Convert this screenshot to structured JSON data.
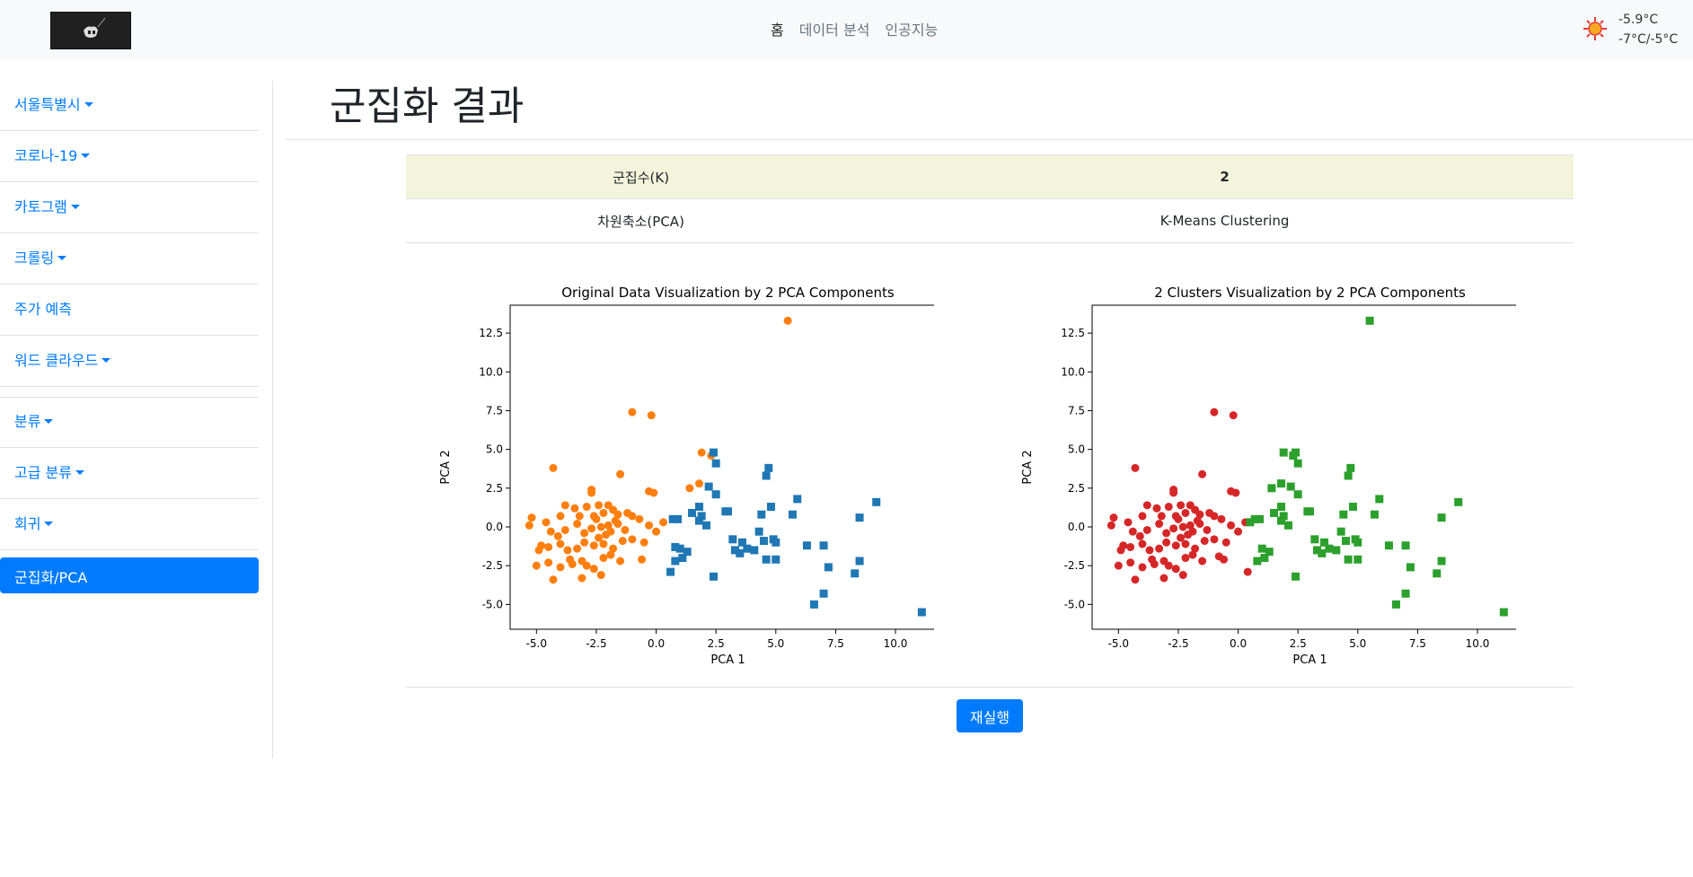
{
  "navbar": {
    "links": [
      {
        "label": "홈",
        "active": true
      },
      {
        "label": "데이터 분석",
        "active": false
      },
      {
        "label": "인공지능",
        "active": false
      }
    ],
    "weather": {
      "icon": "sun-icon",
      "current_temp": "-5.9°C",
      "range": "-7°C/-5°C"
    }
  },
  "sidebar": {
    "items": [
      {
        "label": "서울특별시",
        "dropdown": true
      },
      {
        "label": "코로나-19",
        "dropdown": true
      },
      {
        "label": "카토그램",
        "dropdown": true
      },
      {
        "label": "크롤링",
        "dropdown": true
      },
      {
        "label": "주가 예측",
        "dropdown": false
      },
      {
        "label": "워드 클라우드",
        "dropdown": true
      },
      {
        "label": "분류",
        "dropdown": true
      },
      {
        "label": "고급 분류",
        "dropdown": true
      },
      {
        "label": "회귀",
        "dropdown": true
      },
      {
        "label": "군집화/PCA",
        "dropdown": false,
        "active": true
      }
    ]
  },
  "main": {
    "title": "군집화 결과",
    "table": {
      "row1": {
        "label": "군집수(K)",
        "value": "2"
      },
      "row2": {
        "left": "차원축소(PCA)",
        "right": "K-Means Clustering"
      }
    },
    "rerun_label": "재실행"
  },
  "colors": {
    "orange": "#ff7f0e",
    "blue": "#1f77b4",
    "red": "#d62728",
    "green": "#2ca02c",
    "primary": "#007bff"
  },
  "chart_data": [
    {
      "type": "scatter",
      "title": "Original Data Visualization by 2 PCA Components",
      "xlabel": "PCA 1",
      "ylabel": "PCA 2",
      "xlim": [
        -6.1,
        12.1
      ],
      "ylim": [
        -6.6,
        14.3
      ],
      "xticks": [
        "-5.0",
        "-2.5",
        "0.0",
        "2.5",
        "5.0",
        "7.5",
        "10.0"
      ],
      "yticks": [
        "-5.0",
        "-2.5",
        "0.0",
        "2.5",
        "5.0",
        "7.5",
        "10.0",
        "12.5"
      ],
      "series": [
        {
          "marker": "circle",
          "color": "#ff7f0e",
          "points": [
            [
              5.5,
              13.3
            ],
            [
              -1.0,
              7.4
            ],
            [
              -0.2,
              7.2
            ],
            [
              1.9,
              4.8
            ],
            [
              2.3,
              4.6
            ],
            [
              -4.3,
              3.8
            ],
            [
              -1.5,
              3.4
            ],
            [
              1.8,
              2.8
            ],
            [
              -2.7,
              2.2
            ],
            [
              -0.3,
              2.3
            ],
            [
              -0.1,
              2.2
            ],
            [
              1.4,
              2.5
            ],
            [
              -2.7,
              2.4
            ],
            [
              -3.8,
              1.4
            ],
            [
              -3.4,
              1.2
            ],
            [
              -2.9,
              1.3
            ],
            [
              -2.4,
              1.4
            ],
            [
              -2.0,
              1.4
            ],
            [
              -1.8,
              1.1
            ],
            [
              -2.2,
              0.9
            ],
            [
              -2.6,
              0.7
            ],
            [
              -1.6,
              0.8
            ],
            [
              -4.0,
              0.7
            ],
            [
              -5.2,
              0.6
            ],
            [
              -4.6,
              0.3
            ],
            [
              -5.3,
              0.1
            ],
            [
              -4.4,
              -0.3
            ],
            [
              -3.8,
              -0.2
            ],
            [
              -3.3,
              0.2
            ],
            [
              -3.0,
              -0.4
            ],
            [
              -2.7,
              -0.1
            ],
            [
              -2.5,
              0.5
            ],
            [
              -2.3,
              0.0
            ],
            [
              -2.1,
              -0.5
            ],
            [
              -1.9,
              -0.3
            ],
            [
              -1.6,
              0.2
            ],
            [
              -1.3,
              -0.2
            ],
            [
              -1.0,
              0.7
            ],
            [
              -0.7,
              0.5
            ],
            [
              -0.3,
              0.1
            ],
            [
              0.0,
              -0.3
            ],
            [
              0.3,
              0.3
            ],
            [
              -4.8,
              -1.2
            ],
            [
              -4.5,
              -1.3
            ],
            [
              -4.0,
              -1.1
            ],
            [
              -3.7,
              -1.5
            ],
            [
              -3.3,
              -1.4
            ],
            [
              -3.0,
              -1.0
            ],
            [
              -2.6,
              -1.2
            ],
            [
              -2.2,
              -1.1
            ],
            [
              -1.8,
              -1.4
            ],
            [
              -1.4,
              -0.9
            ],
            [
              -1.0,
              -0.8
            ],
            [
              -0.5,
              -1.0
            ],
            [
              -5.0,
              -2.5
            ],
            [
              -4.5,
              -2.3
            ],
            [
              -4.0,
              -2.6
            ],
            [
              -3.5,
              -2.4
            ],
            [
              -3.1,
              -2.2
            ],
            [
              -2.6,
              -2.7
            ],
            [
              -2.2,
              -2.0
            ],
            [
              -1.9,
              -1.8
            ],
            [
              -0.6,
              -2.1
            ],
            [
              -4.3,
              -3.4
            ],
            [
              -3.1,
              -3.3
            ],
            [
              -2.3,
              -3.1
            ],
            [
              -1.5,
              -2.2
            ],
            [
              -4.9,
              -1.5
            ],
            [
              -3.6,
              -2.1
            ],
            [
              -2.9,
              -2.5
            ],
            [
              -2.4,
              -0.7
            ],
            [
              -1.7,
              0.4
            ],
            [
              -3.2,
              0.7
            ],
            [
              -4.1,
              -0.6
            ],
            [
              -2.0,
              0.1
            ],
            [
              -1.2,
              0.9
            ]
          ]
        },
        {
          "marker": "square",
          "color": "#1f77b4",
          "points": [
            [
              2.4,
              4.8
            ],
            [
              2.5,
              4.1
            ],
            [
              4.7,
              3.8
            ],
            [
              4.6,
              3.3
            ],
            [
              2.2,
              2.6
            ],
            [
              2.5,
              2.1
            ],
            [
              5.9,
              1.8
            ],
            [
              1.8,
              1.3
            ],
            [
              4.8,
              1.3
            ],
            [
              9.2,
              1.6
            ],
            [
              3.0,
              1.0
            ],
            [
              2.9,
              1.0
            ],
            [
              1.5,
              0.9
            ],
            [
              1.9,
              0.7
            ],
            [
              4.4,
              0.8
            ],
            [
              5.7,
              0.8
            ],
            [
              0.9,
              0.5
            ],
            [
              0.7,
              0.5
            ],
            [
              1.8,
              0.4
            ],
            [
              2.1,
              0.1
            ],
            [
              8.5,
              0.6
            ],
            [
              4.3,
              -0.3
            ],
            [
              3.2,
              -0.8
            ],
            [
              3.6,
              -1.0
            ],
            [
              4.5,
              -0.9
            ],
            [
              4.9,
              -0.8
            ],
            [
              5.0,
              -1.0
            ],
            [
              6.3,
              -1.2
            ],
            [
              7.0,
              -1.2
            ],
            [
              1.0,
              -1.4
            ],
            [
              1.3,
              -1.6
            ],
            [
              3.3,
              -1.5
            ],
            [
              3.5,
              -1.7
            ],
            [
              3.8,
              -1.4
            ],
            [
              4.1,
              -1.5
            ],
            [
              0.8,
              -2.2
            ],
            [
              1.1,
              -2.0
            ],
            [
              4.6,
              -2.1
            ],
            [
              5.0,
              -2.1
            ],
            [
              7.2,
              -2.6
            ],
            [
              8.5,
              -2.2
            ],
            [
              0.6,
              -2.9
            ],
            [
              2.4,
              -3.2
            ],
            [
              8.3,
              -3.0
            ],
            [
              7.0,
              -4.3
            ],
            [
              6.6,
              -5.0
            ],
            [
              11.1,
              -5.5
            ],
            [
              0.8,
              -1.3
            ]
          ]
        }
      ]
    },
    {
      "type": "scatter",
      "title": "2 Clusters Visualization by 2 PCA Components",
      "xlabel": "PCA 1",
      "ylabel": "PCA 2",
      "xlim": [
        -6.1,
        12.1
      ],
      "ylim": [
        -6.6,
        14.3
      ],
      "xticks": [
        "-5.0",
        "-2.5",
        "0.0",
        "2.5",
        "5.0",
        "7.5",
        "10.0"
      ],
      "yticks": [
        "-5.0",
        "-2.5",
        "0.0",
        "2.5",
        "5.0",
        "7.5",
        "10.0",
        "12.5"
      ],
      "series": [
        {
          "marker": "circle",
          "color": "#d62728",
          "points": [
            [
              -1.0,
              7.4
            ],
            [
              -0.2,
              7.2
            ],
            [
              -4.3,
              3.8
            ],
            [
              -1.5,
              3.4
            ],
            [
              -2.7,
              2.2
            ],
            [
              -0.3,
              2.3
            ],
            [
              -0.1,
              2.2
            ],
            [
              -2.7,
              2.4
            ],
            [
              -3.8,
              1.4
            ],
            [
              -3.4,
              1.2
            ],
            [
              -2.9,
              1.3
            ],
            [
              -2.4,
              1.4
            ],
            [
              -2.0,
              1.4
            ],
            [
              -1.8,
              1.1
            ],
            [
              -2.2,
              0.9
            ],
            [
              -2.6,
              0.7
            ],
            [
              -1.6,
              0.8
            ],
            [
              -4.0,
              0.7
            ],
            [
              -5.2,
              0.6
            ],
            [
              -4.6,
              0.3
            ],
            [
              -5.3,
              0.1
            ],
            [
              -4.4,
              -0.3
            ],
            [
              -3.8,
              -0.2
            ],
            [
              -3.3,
              0.2
            ],
            [
              -3.0,
              -0.4
            ],
            [
              -2.7,
              -0.1
            ],
            [
              -2.5,
              0.5
            ],
            [
              -2.3,
              0.0
            ],
            [
              -2.1,
              -0.5
            ],
            [
              -1.9,
              -0.3
            ],
            [
              -1.6,
              0.2
            ],
            [
              -1.3,
              -0.2
            ],
            [
              -1.0,
              0.7
            ],
            [
              -0.7,
              0.5
            ],
            [
              -0.3,
              0.1
            ],
            [
              0.0,
              -0.3
            ],
            [
              0.3,
              0.3
            ],
            [
              -4.8,
              -1.2
            ],
            [
              -4.5,
              -1.3
            ],
            [
              -4.0,
              -1.1
            ],
            [
              -3.7,
              -1.5
            ],
            [
              -3.3,
              -1.4
            ],
            [
              -3.0,
              -1.0
            ],
            [
              -2.6,
              -1.2
            ],
            [
              -2.2,
              -1.1
            ],
            [
              -1.8,
              -1.4
            ],
            [
              -1.4,
              -0.9
            ],
            [
              -1.0,
              -0.8
            ],
            [
              -0.5,
              -1.0
            ],
            [
              -5.0,
              -2.5
            ],
            [
              -4.5,
              -2.3
            ],
            [
              -4.0,
              -2.6
            ],
            [
              -3.5,
              -2.4
            ],
            [
              -3.1,
              -2.2
            ],
            [
              -2.6,
              -2.7
            ],
            [
              -2.2,
              -2.0
            ],
            [
              -1.9,
              -1.8
            ],
            [
              -0.6,
              -2.1
            ],
            [
              -4.3,
              -3.4
            ],
            [
              -3.1,
              -3.3
            ],
            [
              -2.3,
              -3.1
            ],
            [
              -1.5,
              -2.2
            ],
            [
              -4.9,
              -1.5
            ],
            [
              -3.6,
              -2.1
            ],
            [
              -2.9,
              -2.5
            ],
            [
              -2.4,
              -0.7
            ],
            [
              -1.7,
              0.4
            ],
            [
              -3.2,
              0.7
            ],
            [
              -4.1,
              -0.6
            ],
            [
              -2.0,
              0.1
            ],
            [
              -1.2,
              0.9
            ],
            [
              -0.8,
              -1.9
            ],
            [
              0.4,
              -2.9
            ]
          ]
        },
        {
          "marker": "square",
          "color": "#2ca02c",
          "points": [
            [
              5.5,
              13.3
            ],
            [
              1.9,
              4.8
            ],
            [
              2.3,
              4.6
            ],
            [
              2.4,
              4.8
            ],
            [
              2.5,
              4.1
            ],
            [
              4.7,
              3.8
            ],
            [
              4.6,
              3.3
            ],
            [
              1.8,
              2.8
            ],
            [
              2.2,
              2.6
            ],
            [
              2.5,
              2.1
            ],
            [
              1.4,
              2.5
            ],
            [
              5.9,
              1.8
            ],
            [
              1.8,
              1.3
            ],
            [
              4.8,
              1.3
            ],
            [
              9.2,
              1.6
            ],
            [
              3.0,
              1.0
            ],
            [
              2.9,
              1.0
            ],
            [
              1.5,
              0.9
            ],
            [
              1.9,
              0.7
            ],
            [
              4.4,
              0.8
            ],
            [
              5.7,
              0.8
            ],
            [
              0.9,
              0.5
            ],
            [
              0.7,
              0.5
            ],
            [
              1.8,
              0.4
            ],
            [
              2.1,
              0.1
            ],
            [
              8.5,
              0.6
            ],
            [
              4.3,
              -0.3
            ],
            [
              3.2,
              -0.8
            ],
            [
              3.6,
              -1.0
            ],
            [
              4.5,
              -0.9
            ],
            [
              4.9,
              -0.8
            ],
            [
              5.0,
              -1.0
            ],
            [
              6.3,
              -1.2
            ],
            [
              7.0,
              -1.2
            ],
            [
              1.0,
              -1.4
            ],
            [
              1.3,
              -1.6
            ],
            [
              3.3,
              -1.5
            ],
            [
              3.5,
              -1.7
            ],
            [
              3.8,
              -1.4
            ],
            [
              4.1,
              -1.5
            ],
            [
              0.8,
              -2.2
            ],
            [
              1.1,
              -2.0
            ],
            [
              4.6,
              -2.1
            ],
            [
              5.0,
              -2.1
            ],
            [
              7.2,
              -2.6
            ],
            [
              8.5,
              -2.2
            ],
            [
              2.4,
              -3.2
            ],
            [
              8.3,
              -3.0
            ],
            [
              7.0,
              -4.3
            ],
            [
              6.6,
              -5.0
            ],
            [
              11.1,
              -5.5
            ],
            [
              0.5,
              0.3
            ]
          ]
        }
      ]
    }
  ]
}
